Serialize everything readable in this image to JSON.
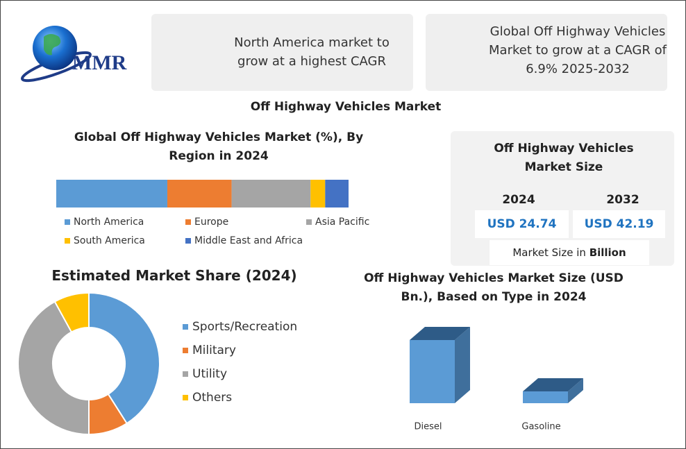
{
  "logo": {
    "text": "MMR"
  },
  "highlights": [
    {
      "text": "North America market to grow at a highest CAGR"
    },
    {
      "text": "Global Off Highway Vehicles Market to grow at a CAGR of 6.9% 2025-2032"
    }
  ],
  "title": "Off Highway Vehicles Market",
  "market_size": {
    "title": "Off Highway Vehicles Market Size",
    "columns": [
      {
        "year": "2024",
        "value": "USD 24.74"
      },
      {
        "year": "2032",
        "value": "USD 42.19"
      }
    ],
    "note": "Market Size in",
    "note_bold": "Billion"
  },
  "chart_data": [
    {
      "type": "stacked-bar",
      "title": "Global Off Highway Vehicles Market (%), By Region in 2024",
      "series": [
        {
          "name": "North America",
          "color": "#5b9bd5",
          "values": [
            38
          ]
        },
        {
          "name": "Europe",
          "color": "#ed7d31",
          "values": [
            22
          ]
        },
        {
          "name": "Asia Pacific",
          "color": "#a5a5a5",
          "values": [
            27
          ]
        },
        {
          "name": "South America",
          "color": "#ffc000",
          "values": [
            5
          ]
        },
        {
          "name": "Middle East and Africa",
          "color": "#4472c4",
          "values": [
            8
          ]
        }
      ]
    },
    {
      "type": "donut",
      "title": "Estimated Market Share (2024)",
      "categories": [
        "Sports/Recreation",
        "Military",
        "Utility",
        "Others"
      ],
      "values": [
        41,
        9,
        42,
        8
      ],
      "colors": [
        "#5b9bd5",
        "#ed7d31",
        "#a5a5a5",
        "#ffc000"
      ]
    },
    {
      "type": "bar3d",
      "title": "Off Highway Vehicles Market Size (USD Bn.), Based on Type in 2024",
      "categories": [
        "Diesel",
        "Gasoline"
      ],
      "values": [
        20.85,
        3.89
      ],
      "color": "#5b9bd5"
    }
  ]
}
